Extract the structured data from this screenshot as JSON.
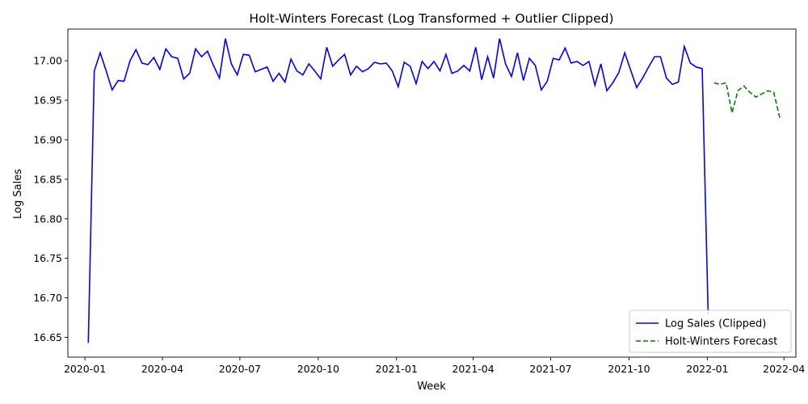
{
  "chart_data": {
    "type": "line",
    "title": "Holt-Winters Forecast (Log Transformed + Outlier Clipped)",
    "xlabel": "Week",
    "ylabel": "Log Sales",
    "ylim": [
      16.625,
      17.04
    ],
    "xlim": [
      "2019-12-12",
      "2022-04-15"
    ],
    "grid": false,
    "legend_position": "lower-right",
    "x_ticks": [
      "2020-01",
      "2020-04",
      "2020-07",
      "2020-10",
      "2021-01",
      "2021-04",
      "2021-07",
      "2021-10",
      "2022-01",
      "2022-04"
    ],
    "y_ticks": [
      "16.65",
      "16.70",
      "16.75",
      "16.80",
      "16.85",
      "16.90",
      "16.95",
      "17.00"
    ],
    "series": [
      {
        "name": "Log Sales (Clipped)",
        "color": "#0000ff",
        "style": "solid",
        "x": [
          "2020-01-05",
          "2020-01-12",
          "2020-01-19",
          "2020-01-26",
          "2020-02-02",
          "2020-02-09",
          "2020-02-16",
          "2020-02-23",
          "2020-03-01",
          "2020-03-08",
          "2020-03-15",
          "2020-03-22",
          "2020-03-29",
          "2020-04-05",
          "2020-04-12",
          "2020-04-19",
          "2020-04-26",
          "2020-05-03",
          "2020-05-10",
          "2020-05-17",
          "2020-05-24",
          "2020-05-31",
          "2020-06-07",
          "2020-06-14",
          "2020-06-21",
          "2020-06-28",
          "2020-07-05",
          "2020-07-12",
          "2020-07-19",
          "2020-07-26",
          "2020-08-02",
          "2020-08-09",
          "2020-08-16",
          "2020-08-23",
          "2020-08-30",
          "2020-09-06",
          "2020-09-13",
          "2020-09-20",
          "2020-09-27",
          "2020-10-04",
          "2020-10-11",
          "2020-10-18",
          "2020-10-25",
          "2020-11-01",
          "2020-11-08",
          "2020-11-15",
          "2020-11-22",
          "2020-11-29",
          "2020-12-06",
          "2020-12-13",
          "2020-12-20",
          "2020-12-27",
          "2021-01-03",
          "2021-01-10",
          "2021-01-17",
          "2021-01-24",
          "2021-01-31",
          "2021-02-07",
          "2021-02-14",
          "2021-02-21",
          "2021-02-28",
          "2021-03-07",
          "2021-03-14",
          "2021-03-21",
          "2021-03-28",
          "2021-04-04",
          "2021-04-11",
          "2021-04-18",
          "2021-04-25",
          "2021-05-02",
          "2021-05-09",
          "2021-05-16",
          "2021-05-23",
          "2021-05-30",
          "2021-06-06",
          "2021-06-13",
          "2021-06-20",
          "2021-06-27",
          "2021-07-04",
          "2021-07-11",
          "2021-07-18",
          "2021-07-25",
          "2021-08-01",
          "2021-08-08",
          "2021-08-15",
          "2021-08-22",
          "2021-08-29",
          "2021-09-05",
          "2021-09-12",
          "2021-09-19",
          "2021-09-26",
          "2021-10-03",
          "2021-10-10",
          "2021-10-17",
          "2021-10-24",
          "2021-10-31",
          "2021-11-07",
          "2021-11-14",
          "2021-11-21",
          "2021-11-28",
          "2021-12-05",
          "2021-12-12",
          "2021-12-19",
          "2021-12-26",
          "2022-01-02"
        ],
        "values": [
          16.643,
          16.987,
          17.01,
          16.987,
          16.963,
          16.975,
          16.974,
          17.0,
          17.014,
          16.997,
          16.995,
          17.004,
          16.989,
          17.015,
          17.005,
          17.003,
          16.977,
          16.984,
          17.015,
          17.005,
          17.012,
          16.994,
          16.978,
          17.028,
          16.996,
          16.982,
          17.008,
          17.007,
          16.986,
          16.989,
          16.992,
          16.974,
          16.984,
          16.973,
          17.002,
          16.987,
          16.982,
          16.996,
          16.987,
          16.977,
          17.017,
          16.993,
          17.001,
          17.008,
          16.982,
          16.993,
          16.986,
          16.99,
          16.998,
          16.996,
          16.997,
          16.987,
          16.967,
          16.998,
          16.993,
          16.971,
          16.999,
          16.99,
          16.999,
          16.987,
          17.008,
          16.984,
          16.987,
          16.994,
          16.987,
          17.017,
          16.976,
          17.005,
          16.978,
          17.028,
          16.996,
          16.98,
          17.01,
          16.975,
          17.003,
          16.994,
          16.963,
          16.974,
          17.003,
          17.001,
          17.016,
          16.997,
          16.999,
          16.994,
          16.999,
          16.969,
          16.996,
          16.962,
          16.972,
          16.985,
          17.01,
          16.988,
          16.966,
          16.978,
          16.992,
          17.005,
          17.005,
          16.978,
          16.97,
          16.973,
          17.018,
          16.997,
          16.992,
          16.99,
          16.678
        ]
      },
      {
        "name": "Holt-Winters Forecast",
        "color": "#008000",
        "style": "dashed",
        "x": [
          "2022-01-09",
          "2022-01-16",
          "2022-01-23",
          "2022-01-30",
          "2022-02-06",
          "2022-02-13",
          "2022-02-20",
          "2022-02-27",
          "2022-03-06",
          "2022-03-13",
          "2022-03-20",
          "2022-03-27"
        ],
        "values": [
          16.972,
          16.97,
          16.972,
          16.934,
          16.962,
          16.968,
          16.96,
          16.954,
          16.958,
          16.962,
          16.96,
          16.928
        ]
      }
    ]
  }
}
